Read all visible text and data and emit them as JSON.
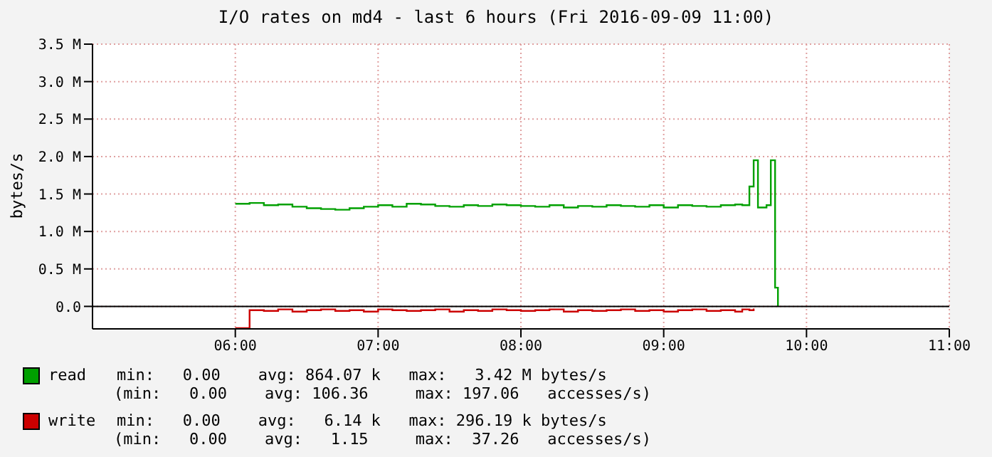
{
  "chart_data": {
    "type": "step",
    "title": "I/O rates on md4 - last 6 hours (Fri 2016-09-09 11:00)",
    "ylabel": "bytes/s",
    "x": [
      6.0,
      6.1,
      6.2,
      6.3,
      6.4,
      6.5,
      6.6,
      6.7,
      6.8,
      6.9,
      7.0,
      7.1,
      7.2,
      7.3,
      7.4,
      7.5,
      7.6,
      7.7,
      7.8,
      7.9,
      8.0,
      8.1,
      8.2,
      8.3,
      8.4,
      8.5,
      8.6,
      8.7,
      8.8,
      8.9,
      9.0,
      9.1,
      9.2,
      9.3,
      9.4,
      9.5,
      9.55,
      9.6,
      9.63,
      9.66,
      9.72,
      9.75,
      9.78,
      9.8
    ],
    "series": [
      {
        "name": "read",
        "color": "#00a000",
        "values": [
          1370000,
          1380000,
          1350000,
          1360000,
          1330000,
          1310000,
          1300000,
          1290000,
          1310000,
          1330000,
          1350000,
          1330000,
          1370000,
          1360000,
          1340000,
          1330000,
          1350000,
          1340000,
          1360000,
          1350000,
          1340000,
          1330000,
          1350000,
          1320000,
          1340000,
          1330000,
          1350000,
          1340000,
          1330000,
          1350000,
          1320000,
          1350000,
          1340000,
          1330000,
          1350000,
          1360000,
          1350000,
          1600000,
          1950000,
          1320000,
          1350000,
          1950000,
          250000,
          0
        ]
      },
      {
        "name": "write",
        "color": "#cc0000",
        "values": [
          -290000,
          -50000,
          -60000,
          -40000,
          -70000,
          -50000,
          -40000,
          -60000,
          -50000,
          -70000,
          -40000,
          -50000,
          -60000,
          -50000,
          -40000,
          -70000,
          -50000,
          -60000,
          -40000,
          -50000,
          -60000,
          -50000,
          -40000,
          -70000,
          -50000,
          -60000,
          -50000,
          -40000,
          -60000,
          -50000,
          -70000,
          -50000,
          -40000,
          -60000,
          -50000,
          -70000,
          -40000,
          -50000,
          -30000,
          null,
          null,
          null,
          null,
          null
        ]
      }
    ],
    "xlim": [
      5,
      11
    ],
    "xticks": [
      {
        "value": 6,
        "label": "06:00"
      },
      {
        "value": 7,
        "label": "07:00"
      },
      {
        "value": 8,
        "label": "08:00"
      },
      {
        "value": 9,
        "label": "09:00"
      },
      {
        "value": 10,
        "label": "10:00"
      },
      {
        "value": 11,
        "label": "11:00"
      }
    ],
    "ylim": [
      -300000,
      3500000
    ],
    "yticks": [
      {
        "value": 0,
        "label": "0.0"
      },
      {
        "value": 500000,
        "label": "0.5 M"
      },
      {
        "value": 1000000,
        "label": "1.0 M"
      },
      {
        "value": 1500000,
        "label": "1.5 M"
      },
      {
        "value": 2000000,
        "label": "2.0 M"
      },
      {
        "value": 2500000,
        "label": "2.5 M"
      },
      {
        "value": 3000000,
        "label": "3.0 M"
      },
      {
        "value": 3500000,
        "label": "3.5 M"
      }
    ],
    "grid": true,
    "legend": "bottom",
    "annotations": [
      "min:   0.00    avg: 864.07 k   max:   3.42 M bytes/s",
      "(min:   0.00    avg: 106.36     max: 197.06   accesses/s)",
      "min:   0.00    avg:   6.14 k   max: 296.19 k bytes/s",
      "(min:   0.00    avg:   1.15     max:  37.26   accesses/s)"
    ]
  }
}
